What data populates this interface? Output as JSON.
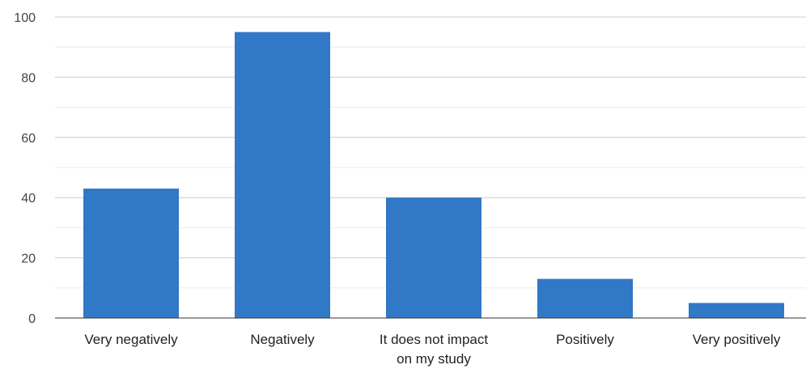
{
  "chart_data": {
    "type": "bar",
    "categories": [
      [
        "Very negatively"
      ],
      [
        "Negatively"
      ],
      [
        "It does not impact",
        "on my study"
      ],
      [
        "Positively"
      ],
      [
        "Very positively"
      ]
    ],
    "values": [
      43,
      95,
      40,
      13,
      5
    ],
    "ylim": [
      0,
      100
    ],
    "yticks": [
      "0",
      "20",
      "40",
      "60",
      "80",
      "100"
    ],
    "ytick_values": [
      0,
      20,
      40,
      60,
      80,
      100
    ],
    "minor_gridlines": [
      10,
      30,
      50,
      70,
      90
    ],
    "grid": true,
    "legend": "none",
    "colors": {
      "bar": "#3178c6",
      "grid": "#cccccc",
      "minor_grid": "#ebebeb",
      "axis": "#333333"
    }
  }
}
